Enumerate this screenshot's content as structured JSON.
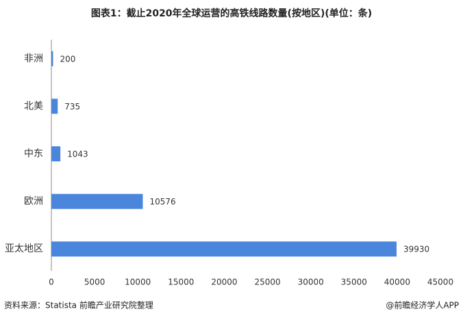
{
  "chart_data": {
    "type": "bar",
    "orientation": "horizontal",
    "title": "图表1：截止2020年全球运营的高铁线路数量(按地区)(单位：条)",
    "categories": [
      "非洲",
      "北美",
      "中东",
      "欧洲",
      "亚太地区"
    ],
    "values": [
      200,
      735,
      1043,
      10576,
      39930
    ],
    "color": "#4a86dc",
    "xlim": [
      0,
      45000
    ],
    "xticks": [
      0,
      5000,
      10000,
      15000,
      20000,
      25000,
      30000,
      35000,
      40000,
      45000
    ],
    "source": "资料来源：Statista 前瞻产业研究院整理",
    "credit": "@前瞻经济学人APP"
  }
}
